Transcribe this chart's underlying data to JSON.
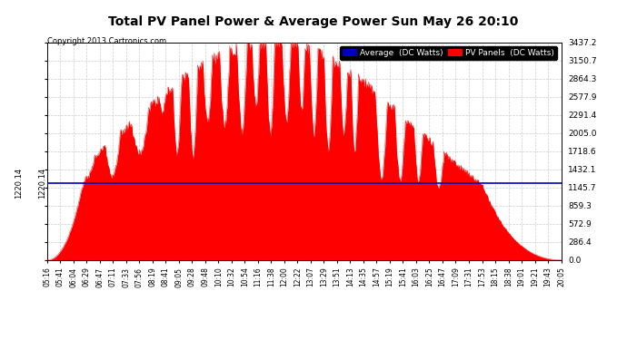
{
  "title": "Total PV Panel Power & Average Power Sun May 26 20:10",
  "copyright": "Copyright 2013 Cartronics.com",
  "legend_entries": [
    "Average  (DC Watts)",
    "PV Panels  (DC Watts)"
  ],
  "legend_colors": [
    "#0000bb",
    "#ff0000"
  ],
  "average_value": 1220.14,
  "y_max": 3437.2,
  "y_ticks": [
    0.0,
    286.4,
    572.9,
    859.3,
    1145.7,
    1432.1,
    1718.6,
    2005.0,
    2291.4,
    2577.9,
    2864.3,
    3150.7,
    3437.2
  ],
  "bg_color": "#ffffff",
  "plot_bg_color": "#ffffff",
  "grid_color": "#cccccc",
  "fill_color": "#ff0000",
  "avg_line_color": "#0000bb",
  "x_labels": [
    "05:16",
    "05:41",
    "06:04",
    "06:29",
    "06:47",
    "07:11",
    "07:33",
    "07:56",
    "08:19",
    "08:41",
    "09:05",
    "09:28",
    "09:48",
    "10:10",
    "10:32",
    "10:54",
    "11:16",
    "11:38",
    "12:00",
    "12:22",
    "13:07",
    "13:29",
    "13:51",
    "14:13",
    "14:35",
    "14:57",
    "15:19",
    "15:41",
    "16:03",
    "16:25",
    "16:47",
    "17:09",
    "17:31",
    "17:53",
    "18:15",
    "18:38",
    "19:01",
    "19:21",
    "19:43",
    "20:05"
  ]
}
